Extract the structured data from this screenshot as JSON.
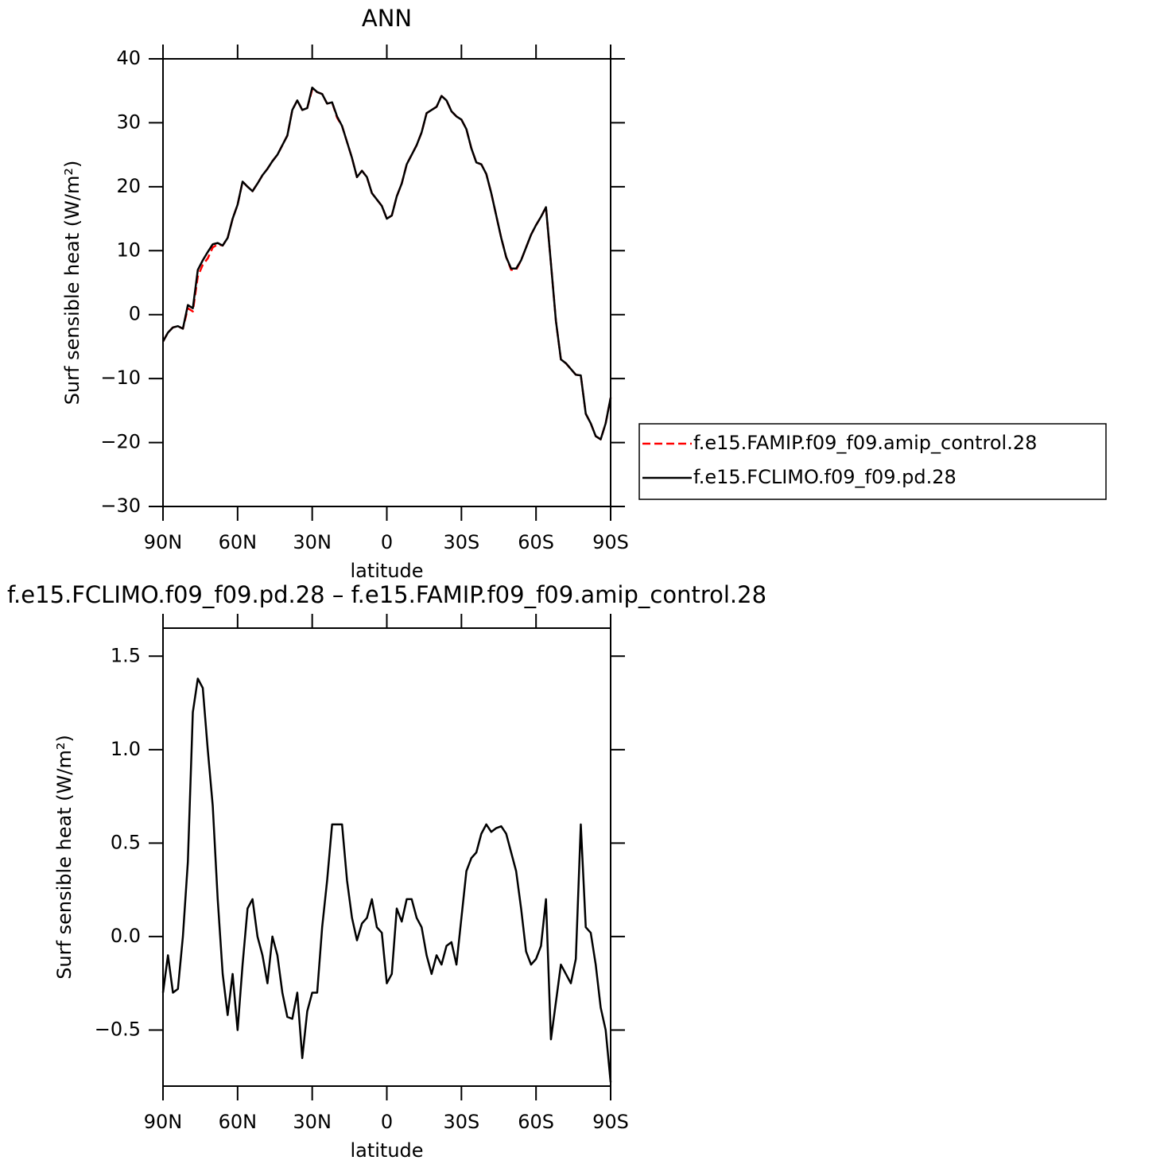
{
  "chart_data": [
    {
      "type": "line",
      "title": "ANN",
      "xlabel": "latitude",
      "ylabel": "Surf sensible heat (W/m²)",
      "x": [
        90,
        88,
        86,
        84,
        82,
        80,
        78,
        76,
        74,
        72,
        70,
        68,
        66,
        64,
        62,
        60,
        58,
        56,
        54,
        52,
        50,
        48,
        46,
        44,
        42,
        40,
        38,
        36,
        34,
        32,
        30,
        28,
        26,
        24,
        22,
        20,
        18,
        16,
        14,
        12,
        10,
        8,
        6,
        4,
        2,
        0,
        -2,
        -4,
        -6,
        -8,
        -10,
        -12,
        -14,
        -16,
        -18,
        -20,
        -22,
        -24,
        -26,
        -28,
        -30,
        -32,
        -34,
        -36,
        -38,
        -40,
        -42,
        -44,
        -46,
        -48,
        -50,
        -52,
        -54,
        -56,
        -58,
        -60,
        -62,
        -64,
        -66,
        -68,
        -70,
        -72,
        -74,
        -76,
        -78,
        -80,
        -82,
        -84,
        -86,
        -88,
        -90
      ],
      "xlim": [
        90,
        -90
      ],
      "xticks": [
        {
          "value": 90,
          "label": "90N"
        },
        {
          "value": 60,
          "label": "60N"
        },
        {
          "value": 30,
          "label": "30N"
        },
        0,
        {
          "value": -30,
          "label": "30S"
        },
        {
          "value": -60,
          "label": "60S"
        },
        {
          "value": -90,
          "label": "90S"
        }
      ],
      "ylim": [
        -30,
        40
      ],
      "yticks": [
        {
          "value": -30,
          "label": "−30"
        },
        {
          "value": -20,
          "label": "−20"
        },
        {
          "value": -10,
          "label": "−10"
        },
        0,
        10,
        20,
        30,
        40
      ],
      "legend": "right",
      "series": [
        {
          "name": "f.e15.FAMIP.f09_f09.amip_control.28",
          "color": "#ff0000",
          "linestyle": "dashed",
          "values": [
            -4.2,
            -2.8,
            -2.0,
            -1.8,
            -2.2,
            1.0,
            0.5,
            6,
            7.8,
            8.8,
            10.5,
            11,
            10.8,
            12,
            15,
            17.2,
            20.8,
            20,
            19.3,
            20.5,
            21.8,
            22.8,
            24,
            25,
            26.5,
            28,
            32,
            33.5,
            32,
            32.3,
            35.2,
            34.8,
            34.5,
            33,
            33.2,
            30.8,
            29.5,
            27,
            24.5,
            21.5,
            22.5,
            21.5,
            19,
            18,
            17,
            15,
            15.5,
            18.5,
            20.5,
            23.5,
            25,
            26.5,
            28.5,
            31.5,
            32,
            32.5,
            34.2,
            33.5,
            31.8,
            31,
            30.5,
            29,
            26,
            23.8,
            23.5,
            22,
            19,
            15.5,
            12,
            9,
            7,
            7,
            8.5,
            10.5,
            12.5,
            14,
            15.3,
            16.8,
            8,
            -1,
            -7,
            -7.6,
            -8.5,
            -9.4,
            -9.5,
            -15.5,
            -17,
            -19,
            -19.5,
            -17,
            -13
          ]
        },
        {
          "name": "f.e15.FCLIMO.f09_f09.pd.28",
          "color": "#000000",
          "linestyle": "solid",
          "values": [
            -4.2,
            -2.8,
            -2.0,
            -1.8,
            -2.2,
            1.5,
            1,
            7,
            8.5,
            9.8,
            11,
            11.2,
            10.8,
            12,
            15,
            17.2,
            20.8,
            20,
            19.3,
            20.5,
            21.8,
            22.8,
            24,
            25,
            26.5,
            28,
            32,
            33.5,
            32,
            32.3,
            35.5,
            34.8,
            34.5,
            33,
            33.2,
            31,
            29.5,
            27,
            24.5,
            21.5,
            22.5,
            21.5,
            19,
            18,
            17,
            15,
            15.5,
            18.5,
            20.5,
            23.5,
            25,
            26.5,
            28.5,
            31.5,
            32,
            32.5,
            34.2,
            33.5,
            31.8,
            31,
            30.5,
            29,
            26,
            23.8,
            23.5,
            22,
            19,
            15.5,
            12,
            9,
            7.2,
            7.2,
            8.5,
            10.5,
            12.5,
            14,
            15.3,
            16.8,
            8,
            -1,
            -7,
            -7.6,
            -8.5,
            -9.4,
            -9.5,
            -15.5,
            -17,
            -19,
            -19.5,
            -17,
            -13
          ]
        }
      ]
    },
    {
      "type": "line",
      "title": "f.e15.FCLIMO.f09_f09.pd.28 – f.e15.FAMIP.f09_f09.amip_control.28",
      "xlabel": "latitude",
      "ylabel": "Surf sensible heat (W/m²)",
      "x": [
        90,
        88,
        86,
        84,
        82,
        80,
        78,
        76,
        74,
        72,
        70,
        68,
        66,
        64,
        62,
        60,
        58,
        56,
        54,
        52,
        50,
        48,
        46,
        44,
        42,
        40,
        38,
        36,
        34,
        32,
        30,
        28,
        26,
        24,
        22,
        20,
        18,
        16,
        14,
        12,
        10,
        8,
        6,
        4,
        2,
        0,
        -2,
        -4,
        -6,
        -8,
        -10,
        -12,
        -14,
        -16,
        -18,
        -20,
        -22,
        -24,
        -26,
        -28,
        -30,
        -32,
        -34,
        -36,
        -38,
        -40,
        -42,
        -44,
        -46,
        -48,
        -50,
        -52,
        -54,
        -56,
        -58,
        -60,
        -62,
        -64,
        -66,
        -68,
        -70,
        -72,
        -74,
        -76,
        -78,
        -80,
        -82,
        -84,
        -86,
        -88,
        -90
      ],
      "xlim": [
        90,
        -90
      ],
      "xticks": [
        {
          "value": 90,
          "label": "90N"
        },
        {
          "value": 60,
          "label": "60N"
        },
        {
          "value": 30,
          "label": "30N"
        },
        0,
        {
          "value": -30,
          "label": "30S"
        },
        {
          "value": -60,
          "label": "60S"
        },
        {
          "value": -90,
          "label": "90S"
        }
      ],
      "ylim": [
        -0.8,
        1.65
      ],
      "yticks": [
        {
          "value": -0.5,
          "label": "−0.5"
        },
        {
          "value": 0,
          "label": "0.0"
        },
        0.5,
        {
          "value": 1,
          "label": "1.0"
        },
        1.5
      ],
      "series": [
        {
          "color": "#000000",
          "linestyle": "solid",
          "values": [
            -0.3,
            -0.1,
            -0.3,
            -0.28,
            0.0,
            0.4,
            1.2,
            1.38,
            1.33,
            1.0,
            0.7,
            0.2,
            -0.2,
            -0.42,
            -0.2,
            -0.5,
            -0.15,
            0.15,
            0.2,
            0.0,
            -0.1,
            -0.25,
            0.0,
            -0.1,
            -0.3,
            -0.43,
            -0.44,
            -0.3,
            -0.65,
            -0.4,
            -0.3,
            -0.3,
            0.05,
            0.3,
            0.6,
            0.6,
            0.6,
            0.3,
            0.1,
            -0.02,
            0.07,
            0.1,
            0.2,
            0.05,
            0.02,
            -0.25,
            -0.2,
            0.15,
            0.08,
            0.2,
            0.2,
            0.1,
            0.05,
            -0.1,
            -0.2,
            -0.1,
            -0.15,
            -0.05,
            -0.03,
            -0.15,
            0.1,
            0.35,
            0.42,
            0.45,
            0.55,
            0.6,
            0.56,
            0.58,
            0.59,
            0.55,
            0.45,
            0.35,
            0.15,
            -0.08,
            -0.15,
            -0.12,
            -0.05,
            0.2,
            -0.55,
            -0.35,
            -0.15,
            -0.2,
            -0.25,
            -0.12,
            0.6,
            0.05,
            0.02,
            -0.15,
            -0.38,
            -0.5,
            -0.78
          ]
        }
      ]
    }
  ]
}
